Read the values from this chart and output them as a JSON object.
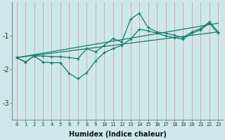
{
  "xlabel": "Humidex (Indice chaleur)",
  "ylabel": "",
  "bg_color": "#cce8e8",
  "line_color": "#1a7a6a",
  "xlim": [
    -0.5,
    23.5
  ],
  "ylim": [
    -3.5,
    0.0
  ],
  "yticks": [
    -3,
    -2,
    -1
  ],
  "xticks": [
    0,
    1,
    2,
    3,
    4,
    5,
    6,
    7,
    8,
    9,
    10,
    11,
    12,
    13,
    14,
    15,
    16,
    17,
    18,
    19,
    20,
    21,
    22,
    23
  ],
  "line1_x": [
    0,
    1,
    2,
    3,
    4,
    5,
    6,
    7,
    8,
    9,
    10,
    11,
    12,
    13,
    14,
    15,
    16,
    17,
    18,
    19,
    20,
    21,
    22,
    23
  ],
  "line1_y": [
    -1.65,
    -1.78,
    -1.6,
    -1.6,
    -1.62,
    -1.62,
    -1.65,
    -1.68,
    -1.38,
    -1.48,
    -1.28,
    -1.08,
    -1.18,
    -0.5,
    -0.32,
    -0.75,
    -0.88,
    -0.92,
    -0.98,
    -1.05,
    -0.88,
    -0.78,
    -0.58,
    -0.88
  ],
  "line2_x": [
    0,
    1,
    2,
    3,
    4,
    5,
    6,
    7,
    8,
    9,
    10,
    11,
    12,
    13,
    14,
    15,
    16,
    17,
    18,
    19,
    20,
    21,
    22,
    23
  ],
  "line2_y": [
    -1.65,
    -1.78,
    -1.6,
    -1.78,
    -1.8,
    -1.8,
    -2.12,
    -2.28,
    -2.1,
    -1.75,
    -1.5,
    -1.38,
    -1.28,
    -1.1,
    -0.8,
    -0.85,
    -0.92,
    -1.0,
    -1.05,
    -1.1,
    -0.92,
    -0.82,
    -0.62,
    -0.92
  ],
  "line3_x": [
    0,
    23
  ],
  "line3_y": [
    -1.65,
    -0.62
  ],
  "line4_x": [
    0,
    23
  ],
  "line4_y": [
    -1.65,
    -0.88
  ]
}
